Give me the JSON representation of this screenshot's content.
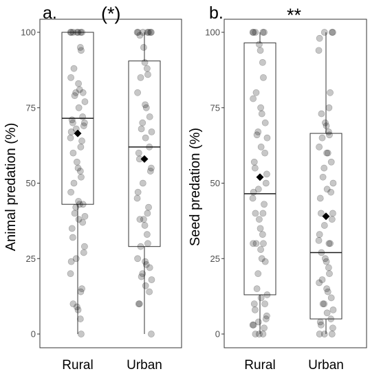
{
  "chart_data": [
    {
      "type": "boxplot",
      "panel_label": "a.",
      "significance": "(*)",
      "ylabel": "Animal predation (%)",
      "ylim": [
        0,
        100
      ],
      "yticks": [
        0,
        25,
        50,
        75,
        100
      ],
      "categories": [
        "Rural",
        "Urban"
      ],
      "boxes": [
        {
          "name": "Rural",
          "min": 0,
          "q1": 43,
          "median": 71.5,
          "q3": 100,
          "max": 100,
          "mean": 66.5
        },
        {
          "name": "Urban",
          "min": 0,
          "q1": 29,
          "median": 62,
          "q3": 90.5,
          "max": 100,
          "mean": 58
        }
      ],
      "points": [
        {
          "group": "Rural",
          "values": [
            100,
            100,
            100,
            100,
            100,
            100,
            100,
            95,
            94,
            88,
            85,
            83,
            81,
            80,
            80,
            79,
            77,
            75,
            72,
            71,
            70,
            70,
            69,
            68,
            67,
            65,
            64,
            62,
            60,
            57,
            55,
            54,
            52,
            50,
            47,
            44,
            43,
            43,
            42,
            40,
            39,
            38,
            37,
            35,
            32,
            29,
            27,
            25,
            24,
            20,
            15,
            14,
            10,
            9,
            8,
            5,
            0
          ]
        },
        {
          "group": "Urban",
          "values": [
            100,
            100,
            100,
            100,
            100,
            100,
            100,
            99,
            95,
            90,
            88,
            86,
            85,
            80,
            76,
            75,
            72,
            70,
            68,
            67,
            65,
            62,
            60,
            58,
            55,
            54,
            50,
            47,
            45,
            42,
            40,
            38,
            38,
            36,
            33,
            30,
            29,
            25,
            24,
            23,
            22,
            20,
            19,
            18,
            16,
            14,
            10,
            10,
            0
          ]
        }
      ]
    },
    {
      "type": "boxplot",
      "panel_label": "b.",
      "significance": "**",
      "ylabel": "Seed predation (%)",
      "ylim": [
        0,
        100
      ],
      "yticks": [
        0,
        25,
        50,
        75,
        100
      ],
      "categories": [
        "Rural",
        "Urban"
      ],
      "boxes": [
        {
          "name": "Rural",
          "min": 0,
          "q1": 13,
          "median": 46.5,
          "q3": 96.5,
          "max": 100,
          "mean": 52
        },
        {
          "name": "Urban",
          "min": 0,
          "q1": 5,
          "median": 27,
          "q3": 66.5,
          "max": 100,
          "mean": 39
        }
      ],
      "points": [
        {
          "group": "Rural",
          "values": [
            100,
            100,
            100,
            100,
            100,
            96,
            94,
            90,
            85,
            80,
            78,
            75,
            73,
            70,
            67,
            66,
            65,
            62,
            60,
            57,
            55,
            53,
            50,
            48,
            47,
            45,
            43,
            40,
            40,
            38,
            35,
            33,
            30,
            30,
            30,
            28,
            25,
            24,
            20,
            15,
            13,
            12,
            10,
            10,
            8,
            6,
            5,
            4,
            3,
            3,
            2,
            0,
            0,
            0
          ]
        },
        {
          "group": "Urban",
          "values": [
            100,
            100,
            100,
            98,
            94,
            80,
            75,
            73,
            70,
            69,
            67,
            66,
            65,
            62,
            60,
            60,
            57,
            55,
            52,
            50,
            48,
            47,
            45,
            40,
            40,
            38,
            36,
            33,
            31,
            30,
            30,
            27,
            25,
            24,
            22,
            20,
            18,
            17,
            15,
            14,
            12,
            10,
            10,
            8,
            7,
            5,
            4,
            3,
            2,
            0,
            0,
            0
          ]
        }
      ]
    }
  ]
}
